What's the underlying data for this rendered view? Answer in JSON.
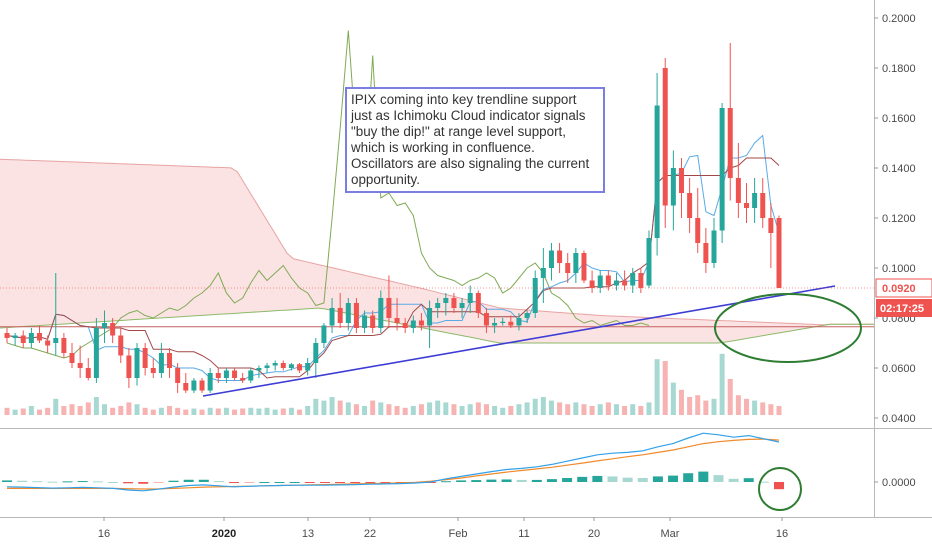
{
  "chart_data": {
    "type": "candlestick",
    "symbol": "IPIX",
    "colors": {
      "up": "#26a69a",
      "down": "#ef5350",
      "cloud_fill": "#fbe3e3",
      "cloud_edge": "#e8a3a3",
      "trendline": "#3d3dd6",
      "conversion": "#5aaae6",
      "base": "#a34848",
      "lagging": "#7faa55",
      "circle": "#2e7d32",
      "macd": "#33a0e8",
      "signal": "#f08a2a",
      "price_label": "#ef5350",
      "timer_label": "#ef5350"
    },
    "y_axis": {
      "ticks": [
        "0.0400",
        "0.0600",
        "0.0800",
        "0.1000",
        "0.1200",
        "0.1400",
        "0.1600",
        "0.1800",
        "0.2000"
      ],
      "range": [
        0.035,
        0.205
      ]
    },
    "lower_axis": {
      "ticks": [
        "0.0000"
      ]
    },
    "x_axis": {
      "ticks": [
        {
          "label": "16",
          "bold": false
        },
        {
          "label": "2020",
          "bold": true
        },
        {
          "label": "13",
          "bold": false
        },
        {
          "label": "22",
          "bold": false
        },
        {
          "label": "Feb",
          "bold": false
        },
        {
          "label": "11",
          "bold": false
        },
        {
          "label": "20",
          "bold": false
        },
        {
          "label": "Mar",
          "bold": false
        },
        {
          "label": "16",
          "bold": false
        }
      ]
    },
    "current_price_label": "0.0920",
    "countdown_label": "02:17:25",
    "annotation": "IPIX coming into key trendline support just as Ichimoku Cloud indicator signals \"buy the dip!\" at range level support, which is working in confluence. Oscillators are also signaling the current opportunity.",
    "candles": [
      {
        "o": 0.074,
        "h": 0.076,
        "l": 0.07,
        "c": 0.072
      },
      {
        "o": 0.072,
        "h": 0.074,
        "l": 0.069,
        "c": 0.073
      },
      {
        "o": 0.073,
        "h": 0.075,
        "l": 0.068,
        "c": 0.07
      },
      {
        "o": 0.07,
        "h": 0.076,
        "l": 0.068,
        "c": 0.074
      },
      {
        "o": 0.074,
        "h": 0.077,
        "l": 0.07,
        "c": 0.071
      },
      {
        "o": 0.071,
        "h": 0.073,
        "l": 0.066,
        "c": 0.069
      },
      {
        "o": 0.07,
        "h": 0.098,
        "l": 0.065,
        "c": 0.072
      },
      {
        "o": 0.072,
        "h": 0.074,
        "l": 0.064,
        "c": 0.066
      },
      {
        "o": 0.066,
        "h": 0.07,
        "l": 0.06,
        "c": 0.062
      },
      {
        "o": 0.062,
        "h": 0.069,
        "l": 0.056,
        "c": 0.06
      },
      {
        "o": 0.06,
        "h": 0.064,
        "l": 0.055,
        "c": 0.056
      },
      {
        "o": 0.056,
        "h": 0.08,
        "l": 0.054,
        "c": 0.076
      },
      {
        "o": 0.076,
        "h": 0.083,
        "l": 0.07,
        "c": 0.078
      },
      {
        "o": 0.078,
        "h": 0.08,
        "l": 0.07,
        "c": 0.073
      },
      {
        "o": 0.073,
        "h": 0.076,
        "l": 0.062,
        "c": 0.065
      },
      {
        "o": 0.065,
        "h": 0.068,
        "l": 0.052,
        "c": 0.056
      },
      {
        "o": 0.056,
        "h": 0.07,
        "l": 0.053,
        "c": 0.068
      },
      {
        "o": 0.068,
        "h": 0.07,
        "l": 0.057,
        "c": 0.06
      },
      {
        "o": 0.06,
        "h": 0.064,
        "l": 0.056,
        "c": 0.058
      },
      {
        "o": 0.058,
        "h": 0.07,
        "l": 0.056,
        "c": 0.066
      },
      {
        "o": 0.066,
        "h": 0.068,
        "l": 0.056,
        "c": 0.06
      },
      {
        "o": 0.06,
        "h": 0.062,
        "l": 0.05,
        "c": 0.054
      },
      {
        "o": 0.054,
        "h": 0.058,
        "l": 0.05,
        "c": 0.051
      },
      {
        "o": 0.051,
        "h": 0.056,
        "l": 0.05,
        "c": 0.055
      },
      {
        "o": 0.055,
        "h": 0.056,
        "l": 0.05,
        "c": 0.051
      },
      {
        "o": 0.051,
        "h": 0.06,
        "l": 0.05,
        "c": 0.058
      },
      {
        "o": 0.058,
        "h": 0.06,
        "l": 0.054,
        "c": 0.056
      },
      {
        "o": 0.056,
        "h": 0.06,
        "l": 0.054,
        "c": 0.059
      },
      {
        "o": 0.059,
        "h": 0.06,
        "l": 0.055,
        "c": 0.056
      },
      {
        "o": 0.056,
        "h": 0.058,
        "l": 0.054,
        "c": 0.055
      },
      {
        "o": 0.055,
        "h": 0.06,
        "l": 0.054,
        "c": 0.059
      },
      {
        "o": 0.059,
        "h": 0.061,
        "l": 0.056,
        "c": 0.06
      },
      {
        "o": 0.06,
        "h": 0.062,
        "l": 0.058,
        "c": 0.061
      },
      {
        "o": 0.061,
        "h": 0.063,
        "l": 0.059,
        "c": 0.062
      },
      {
        "o": 0.062,
        "h": 0.063,
        "l": 0.059,
        "c": 0.06
      },
      {
        "o": 0.06,
        "h": 0.062,
        "l": 0.059,
        "c": 0.0615
      },
      {
        "o": 0.0615,
        "h": 0.062,
        "l": 0.058,
        "c": 0.059
      },
      {
        "o": 0.059,
        "h": 0.064,
        "l": 0.057,
        "c": 0.062
      },
      {
        "o": 0.062,
        "h": 0.072,
        "l": 0.056,
        "c": 0.07
      },
      {
        "o": 0.07,
        "h": 0.078,
        "l": 0.068,
        "c": 0.077
      },
      {
        "o": 0.077,
        "h": 0.088,
        "l": 0.074,
        "c": 0.084
      },
      {
        "o": 0.084,
        "h": 0.09,
        "l": 0.076,
        "c": 0.078
      },
      {
        "o": 0.078,
        "h": 0.088,
        "l": 0.075,
        "c": 0.086
      },
      {
        "o": 0.086,
        "h": 0.088,
        "l": 0.074,
        "c": 0.076
      },
      {
        "o": 0.076,
        "h": 0.083,
        "l": 0.074,
        "c": 0.081
      },
      {
        "o": 0.081,
        "h": 0.083,
        "l": 0.074,
        "c": 0.076
      },
      {
        "o": 0.076,
        "h": 0.091,
        "l": 0.074,
        "c": 0.088
      },
      {
        "o": 0.088,
        "h": 0.097,
        "l": 0.076,
        "c": 0.08
      },
      {
        "o": 0.08,
        "h": 0.088,
        "l": 0.075,
        "c": 0.078
      },
      {
        "o": 0.078,
        "h": 0.08,
        "l": 0.074,
        "c": 0.076
      },
      {
        "o": 0.076,
        "h": 0.081,
        "l": 0.074,
        "c": 0.079
      },
      {
        "o": 0.079,
        "h": 0.082,
        "l": 0.075,
        "c": 0.077
      },
      {
        "o": 0.077,
        "h": 0.087,
        "l": 0.068,
        "c": 0.084
      },
      {
        "o": 0.084,
        "h": 0.088,
        "l": 0.08,
        "c": 0.086
      },
      {
        "o": 0.086,
        "h": 0.09,
        "l": 0.081,
        "c": 0.088
      },
      {
        "o": 0.088,
        "h": 0.09,
        "l": 0.082,
        "c": 0.084
      },
      {
        "o": 0.084,
        "h": 0.088,
        "l": 0.08,
        "c": 0.086
      },
      {
        "o": 0.086,
        "h": 0.093,
        "l": 0.082,
        "c": 0.09
      },
      {
        "o": 0.09,
        "h": 0.091,
        "l": 0.08,
        "c": 0.082
      },
      {
        "o": 0.082,
        "h": 0.084,
        "l": 0.074,
        "c": 0.077
      },
      {
        "o": 0.077,
        "h": 0.08,
        "l": 0.074,
        "c": 0.078
      },
      {
        "o": 0.078,
        "h": 0.08,
        "l": 0.077,
        "c": 0.0785
      },
      {
        "o": 0.0785,
        "h": 0.081,
        "l": 0.076,
        "c": 0.077
      },
      {
        "o": 0.077,
        "h": 0.082,
        "l": 0.075,
        "c": 0.08
      },
      {
        "o": 0.08,
        "h": 0.083,
        "l": 0.078,
        "c": 0.082
      },
      {
        "o": 0.082,
        "h": 0.099,
        "l": 0.08,
        "c": 0.096
      },
      {
        "o": 0.096,
        "h": 0.108,
        "l": 0.086,
        "c": 0.1
      },
      {
        "o": 0.1,
        "h": 0.11,
        "l": 0.095,
        "c": 0.107
      },
      {
        "o": 0.107,
        "h": 0.11,
        "l": 0.098,
        "c": 0.102
      },
      {
        "o": 0.102,
        "h": 0.106,
        "l": 0.094,
        "c": 0.098
      },
      {
        "o": 0.098,
        "h": 0.108,
        "l": 0.094,
        "c": 0.106
      },
      {
        "o": 0.106,
        "h": 0.107,
        "l": 0.094,
        "c": 0.095
      },
      {
        "o": 0.095,
        "h": 0.099,
        "l": 0.09,
        "c": 0.092
      },
      {
        "o": 0.092,
        "h": 0.099,
        "l": 0.09,
        "c": 0.097
      },
      {
        "o": 0.097,
        "h": 0.099,
        "l": 0.091,
        "c": 0.093
      },
      {
        "o": 0.093,
        "h": 0.098,
        "l": 0.091,
        "c": 0.095
      },
      {
        "o": 0.095,
        "h": 0.099,
        "l": 0.091,
        "c": 0.093
      },
      {
        "o": 0.093,
        "h": 0.1,
        "l": 0.09,
        "c": 0.098
      },
      {
        "o": 0.098,
        "h": 0.1,
        "l": 0.09,
        "c": 0.092
      },
      {
        "o": 0.093,
        "h": 0.115,
        "l": 0.092,
        "c": 0.112
      },
      {
        "o": 0.112,
        "h": 0.178,
        "l": 0.105,
        "c": 0.165
      },
      {
        "o": 0.18,
        "h": 0.184,
        "l": 0.116,
        "c": 0.125
      },
      {
        "o": 0.125,
        "h": 0.147,
        "l": 0.115,
        "c": 0.14
      },
      {
        "o": 0.14,
        "h": 0.144,
        "l": 0.12,
        "c": 0.13
      },
      {
        "o": 0.13,
        "h": 0.136,
        "l": 0.114,
        "c": 0.12
      },
      {
        "o": 0.12,
        "h": 0.132,
        "l": 0.106,
        "c": 0.11
      },
      {
        "o": 0.11,
        "h": 0.116,
        "l": 0.098,
        "c": 0.102
      },
      {
        "o": 0.102,
        "h": 0.12,
        "l": 0.1,
        "c": 0.115
      },
      {
        "o": 0.115,
        "h": 0.166,
        "l": 0.11,
        "c": 0.164
      },
      {
        "o": 0.164,
        "h": 0.19,
        "l": 0.127,
        "c": 0.136
      },
      {
        "o": 0.136,
        "h": 0.15,
        "l": 0.12,
        "c": 0.126
      },
      {
        "o": 0.126,
        "h": 0.134,
        "l": 0.118,
        "c": 0.124
      },
      {
        "o": 0.124,
        "h": 0.136,
        "l": 0.118,
        "c": 0.13
      },
      {
        "o": 0.13,
        "h": 0.136,
        "l": 0.116,
        "c": 0.12
      },
      {
        "o": 0.12,
        "h": 0.126,
        "l": 0.1,
        "c": 0.114
      },
      {
        "o": 0.12,
        "h": 0.121,
        "l": 0.092,
        "c": 0.092
      }
    ],
    "volume": [
      0.2,
      0.15,
      0.18,
      0.25,
      0.15,
      0.2,
      0.45,
      0.25,
      0.3,
      0.25,
      0.35,
      0.5,
      0.3,
      0.2,
      0.25,
      0.35,
      0.3,
      0.2,
      0.15,
      0.2,
      0.25,
      0.2,
      0.15,
      0.18,
      0.15,
      0.2,
      0.18,
      0.2,
      0.15,
      0.18,
      0.2,
      0.18,
      0.2,
      0.15,
      0.18,
      0.2,
      0.15,
      0.25,
      0.45,
      0.4,
      0.5,
      0.4,
      0.35,
      0.3,
      0.25,
      0.4,
      0.35,
      0.3,
      0.25,
      0.2,
      0.25,
      0.3,
      0.35,
      0.4,
      0.35,
      0.3,
      0.25,
      0.3,
      0.35,
      0.3,
      0.25,
      0.2,
      0.25,
      0.3,
      0.35,
      0.45,
      0.5,
      0.4,
      0.35,
      0.3,
      0.35,
      0.3,
      0.25,
      0.3,
      0.35,
      0.3,
      0.25,
      0.3,
      0.25,
      0.35,
      1.55,
      1.5,
      0.9,
      0.7,
      0.5,
      0.55,
      0.4,
      0.45,
      1.7,
      1.0,
      0.55,
      0.45,
      0.4,
      0.35,
      0.3,
      0.25
    ],
    "lagging_span": [
      0.07,
      0.069,
      0.068,
      0.068,
      0.067,
      0.066,
      0.065,
      0.064,
      0.065,
      0.068,
      0.07,
      0.072,
      0.074,
      0.076,
      0.08,
      0.082,
      0.083,
      0.081,
      0.08,
      0.082,
      0.084,
      0.083,
      0.085,
      0.088,
      0.09,
      0.093,
      0.098,
      0.09,
      0.086,
      0.088,
      0.094,
      0.099,
      0.095,
      0.098,
      0.101,
      0.096,
      0.092,
      0.09,
      0.085,
      0.086,
      0.12,
      0.156,
      0.195,
      0.15,
      0.13,
      0.185,
      0.128,
      0.13,
      0.125,
      0.126,
      0.121,
      0.106,
      0.1,
      0.097,
      0.096,
      0.095,
      0.093,
      0.095,
      0.096,
      0.098,
      0.096,
      0.09,
      0.092,
      0.096,
      0.1,
      0.102,
      0.098,
      0.09,
      0.088,
      0.085,
      0.08,
      0.078,
      0.079,
      0.077,
      0.078,
      0.079,
      0.077,
      0.077,
      0.078,
      0.077
    ],
    "lower_pane": {
      "macd": [
        -0.3,
        -0.32,
        -0.35,
        -0.38,
        -0.36,
        -0.34,
        -0.36,
        -0.4,
        -0.5,
        -0.55,
        -0.45,
        -0.32,
        -0.22,
        -0.18,
        -0.24,
        -0.3,
        -0.27,
        -0.24,
        -0.22,
        -0.2,
        -0.2,
        -0.2,
        -0.18,
        -0.16,
        -0.14,
        -0.12,
        -0.1,
        -0.06,
        0.0,
        0.2,
        0.35,
        0.5,
        0.65,
        0.78,
        0.85,
        0.95,
        1.1,
        1.3,
        1.5,
        1.7,
        1.8,
        1.85,
        1.95,
        2.2,
        2.4,
        2.75,
        3.05,
        2.95,
        2.8,
        2.9,
        2.7,
        2.5
      ],
      "signal": [
        -0.4,
        -0.4,
        -0.4,
        -0.4,
        -0.4,
        -0.4,
        -0.4,
        -0.4,
        -0.42,
        -0.44,
        -0.43,
        -0.4,
        -0.36,
        -0.32,
        -0.3,
        -0.28,
        -0.26,
        -0.24,
        -0.22,
        -0.2,
        -0.18,
        -0.16,
        -0.14,
        -0.12,
        -0.1,
        -0.08,
        -0.05,
        -0.02,
        0.05,
        0.15,
        0.25,
        0.38,
        0.5,
        0.62,
        0.72,
        0.82,
        0.92,
        1.05,
        1.18,
        1.32,
        1.45,
        1.58,
        1.7,
        1.85,
        2.0,
        2.2,
        2.4,
        2.52,
        2.6,
        2.66,
        2.68,
        2.62
      ],
      "histogram": [
        0.1,
        0.08,
        0.05,
        0.02,
        0.04,
        0.06,
        0.04,
        0.0,
        -0.08,
        -0.11,
        -0.02,
        0.08,
        0.14,
        0.14,
        0.06,
        -0.02,
        -0.01,
        0.0,
        0.0,
        0.0,
        -0.02,
        -0.04,
        -0.04,
        -0.04,
        -0.04,
        -0.04,
        -0.05,
        -0.04,
        -0.05,
        0.05,
        0.1,
        0.12,
        0.15,
        0.16,
        0.13,
        0.13,
        0.18,
        0.25,
        0.32,
        0.38,
        0.35,
        0.27,
        0.25,
        0.35,
        0.4,
        0.55,
        0.65,
        0.43,
        0.2,
        0.24,
        0.02,
        -0.45
      ]
    }
  }
}
